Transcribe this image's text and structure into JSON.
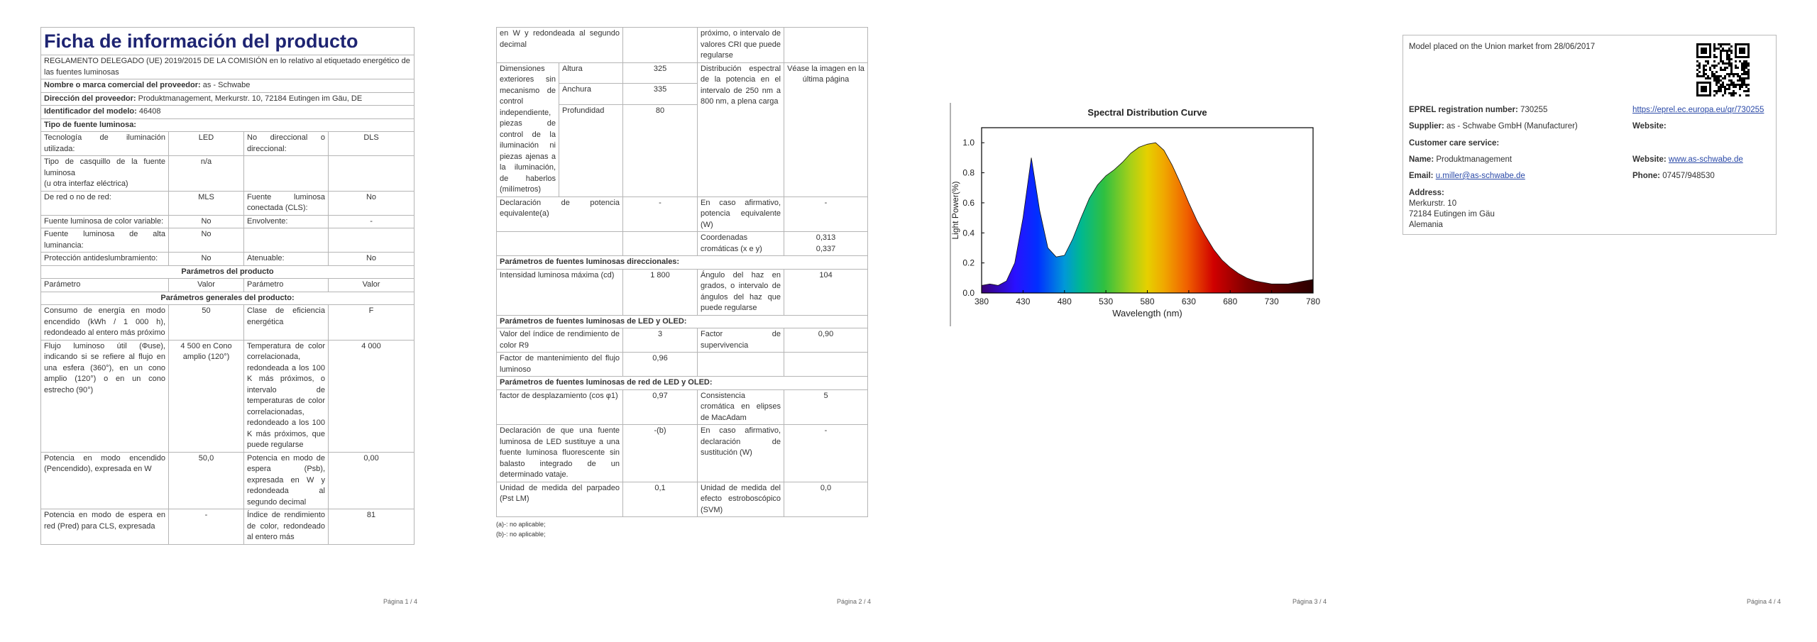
{
  "page1": {
    "title": "Ficha de información del producto",
    "regulation": "REGLAMENTO DELEGADO (UE) 2019/2015 DE LA COMISIÓN en lo relativo al etiquetado energético de las fuentes luminosas",
    "rows": [
      {
        "label": "Nombre o marca comercial del proveedor:",
        "value": "as - Schwabe"
      },
      {
        "label": "Dirección del proveedor:",
        "value": "Produktmanagement, Merkurstr. 10, 72184 Eutingen im Gäu, DE"
      },
      {
        "label": "Identificador del modelo:",
        "value": "46408"
      },
      {
        "heading": "Tipo de fuente luminosa:"
      },
      {
        "cells": [
          "Tecnología de iluminación utilizada:",
          "LED",
          "No direccional o direccional:",
          "DLS"
        ]
      },
      {
        "cells": [
          [
            "Tipo de casquillo de la fuente luminosa",
            "(u otra interfaz eléctrica)"
          ],
          "n/a",
          null,
          null
        ]
      },
      {
        "cells": [
          "De red o no de red:",
          "MLS",
          "Fuente luminosa conectada (CLS):",
          "No"
        ]
      },
      {
        "cells": [
          "Fuente luminosa de color variable:",
          "No",
          "Envolvente:",
          "-"
        ]
      },
      {
        "cells": [
          "Fuente luminosa de alta luminancia:",
          "No",
          null,
          null
        ]
      },
      {
        "cells": [
          "Protección antideslumbramiento:",
          "No",
          "Atenuable:",
          "No"
        ]
      },
      {
        "caption": "Parámetros del producto"
      },
      {
        "cells": [
          "Parámetro",
          "Valor",
          "Parámetro",
          "Valor"
        ]
      },
      {
        "caption": "Parámetros generales del producto:"
      },
      {
        "cells": [
          "Consumo de energía en modo encendido (kWh / 1 000 h), redondeado al entero más próximo",
          "50",
          "Clase de eficiencia energética",
          "F"
        ]
      },
      {
        "cells": [
          "Flujo luminoso útil (Φuse), indicando si se refiere al flujo en una esfera (360°), en un cono amplio (120°) o en un cono estrecho (90°)",
          "4 500 en Cono amplio (120°)",
          "Temperatura de color correlacionada, redondeada a los 100 K más próximos, o intervalo de temperaturas de color correlacionadas, redondeado a los 100 K más próximos, que puede regularse",
          "4 000"
        ]
      },
      {
        "cells": [
          "Potencia en modo encendido (Pencendido), expresada en W",
          "50,0",
          "Potencia en modo de espera (Psb), expresada en W y redondeada al segundo decimal",
          "0,00"
        ]
      },
      {
        "cells": [
          "Potencia en modo de espera en red (Pred) para CLS, expresada",
          "-",
          "Índice de rendimiento de color, redondeado al entero más",
          "81"
        ]
      }
    ],
    "page_number": "Página 1 / 4"
  },
  "page2": {
    "rows": [
      {
        "cells": [
          "en W y redondeada al segundo decimal",
          null,
          "próximo, o intervalo de valores CRI que puede regularse",
          null
        ]
      },
      {
        "dimensions": {
          "label": "Dimensiones exteriores sin mecanismo de control independiente, piezas de control de la iluminación ni piezas ajenas a la iluminación, de haberlos (milímetros)",
          "items": [
            {
              "name": "Altura",
              "value": "325"
            },
            {
              "name": "Anchura",
              "value": "335"
            },
            {
              "name": "Profundidad",
              "value": "80"
            }
          ],
          "parameter": "Distribución espectral de la potencia en el intervalo de 250 nm a 800 nm, a plena carga",
          "value": "Véase la imagen en la última página"
        }
      },
      {
        "cells": [
          "Declaración de potencia equivalente(a)",
          "-",
          "En caso afirmativo, potencia equivalente (W)",
          "-"
        ]
      },
      {
        "cells": [
          null,
          null,
          "Coordenadas cromáticas (x e y)",
          [
            "0,313",
            "0,337"
          ]
        ]
      },
      {
        "heading": "Parámetros de fuentes luminosas direccionales:"
      },
      {
        "cells": [
          "Intensidad luminosa máxima (cd)",
          "1 800",
          "Ángulo del haz en grados, o intervalo de ángulos del haz que puede regularse",
          "104"
        ]
      },
      {
        "heading": "Parámetros de fuentes luminosas de LED y OLED:"
      },
      {
        "cells": [
          "Valor del índice de rendimiento de color R9",
          "3",
          "Factor de supervivencia",
          "0,90"
        ]
      },
      {
        "cells": [
          "Factor de mantenimiento del flujo luminoso",
          "0,96",
          null,
          null
        ]
      },
      {
        "heading": "Parámetros de fuentes luminosas de red de LED y OLED:"
      },
      {
        "cells": [
          "factor de desplazamiento (cos φ1)",
          "0,97",
          "Consistencia cromática en elipses de MacAdam",
          "5"
        ]
      },
      {
        "cells": [
          "Declaración de que una fuente luminosa de LED sustituye a una fuente luminosa fluorescente sin balasto integrado de un determinado vataje.",
          "-(b)",
          "En caso afirmativo, declaración de sustitución (W)",
          "-"
        ]
      },
      {
        "cells": [
          "Unidad de medida del parpadeo (Pst LM)",
          "0,1",
          "Unidad de medida del efecto estroboscópico (SVM)",
          "0,0"
        ]
      }
    ],
    "footnotes": [
      "(a)-: no aplicable;",
      "(b)-: no aplicable;"
    ],
    "page_number": "Página 2 / 4"
  },
  "chart_data": {
    "type": "area",
    "title": "Spectral Distribution Curve",
    "x_label": "Wavelength (nm)",
    "y_label": "Light Power(%)",
    "x": [
      380,
      390,
      400,
      410,
      420,
      430,
      440,
      450,
      460,
      470,
      480,
      490,
      500,
      510,
      520,
      530,
      540,
      550,
      560,
      570,
      580,
      590,
      600,
      610,
      620,
      630,
      640,
      650,
      660,
      670,
      680,
      690,
      700,
      710,
      720,
      730,
      740,
      750,
      760,
      770,
      780
    ],
    "values": [
      0.05,
      0.06,
      0.05,
      0.08,
      0.2,
      0.5,
      0.9,
      0.55,
      0.3,
      0.24,
      0.25,
      0.36,
      0.5,
      0.63,
      0.72,
      0.78,
      0.82,
      0.87,
      0.93,
      0.97,
      0.99,
      1.0,
      0.95,
      0.85,
      0.73,
      0.6,
      0.48,
      0.38,
      0.29,
      0.22,
      0.17,
      0.13,
      0.1,
      0.08,
      0.07,
      0.06,
      0.06,
      0.06,
      0.07,
      0.08,
      0.09
    ],
    "xlim": [
      380,
      780
    ],
    "ylim": [
      0,
      1.1
    ],
    "xticks": [
      380,
      430,
      480,
      530,
      580,
      630,
      680,
      730,
      780
    ],
    "yticks": [
      {
        "value": 0,
        "label": "0.0"
      },
      0.2,
      0.4,
      0.6,
      0.8,
      {
        "value": 1,
        "label": "1.0"
      }
    ]
  },
  "page3": {
    "page_number": "Página 3 / 4"
  },
  "page4": {
    "model_note": "Model placed on the Union market from 28/06/2017",
    "eprel": {
      "label": "EPREL registration number:",
      "value": "730255"
    },
    "eprel_link": "https://eprel.ec.europa.eu/qr/730255",
    "supplier": {
      "label": "Supplier:",
      "value": "as - Schwabe GmbH (Manufacturer)"
    },
    "website_label": "Website:",
    "customer_care": "Customer care service:",
    "name": {
      "label": "Name:",
      "value": "Produktmanagement"
    },
    "website": {
      "label": "Website:",
      "value": "www.as-schwabe.de"
    },
    "email": {
      "label": "Email:",
      "value": "u.miller@as-schwabe.de"
    },
    "phone": {
      "label": "Phone:",
      "value": "07457/948530"
    },
    "address": {
      "label": "Address:",
      "lines": [
        "Merkurstr. 10",
        "72184 Eutingen im Gäu",
        "Alemania"
      ]
    },
    "page_number": "Página 4 / 4"
  }
}
